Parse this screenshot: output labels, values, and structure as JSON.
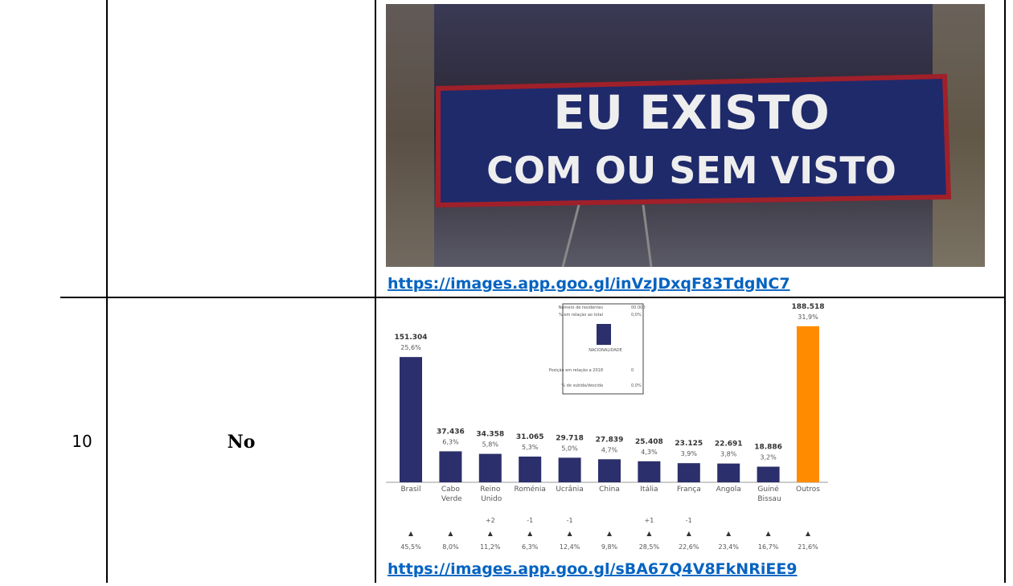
{
  "rows": [
    {
      "photo_banner": [
        "EU EXISTO",
        "COM OU SEM VISTO"
      ],
      "link": "https://images.app.goo.gl/inVzJDxqF83TdgNC7"
    },
    {
      "number": "10",
      "answer": "No",
      "chart": {
        "type": "bar",
        "legend_box": [
          "Número de residentes",
          "00.000",
          "% em relação ao total",
          "0,0%",
          "NACIONALIDADE",
          "Posição em relação a 2018",
          "0",
          "% de subida/descida",
          "0,0%"
        ],
        "categories": [
          "Brasil",
          "Cabo Verde",
          "Reino Unido",
          "Roménia",
          "Ucrânia",
          "China",
          "Itália",
          "França",
          "Angola",
          "Guiné Bissau",
          "Outros"
        ],
        "values": [
          151304,
          37436,
          34358,
          31065,
          29718,
          27839,
          25408,
          23125,
          22691,
          18886,
          188518
        ],
        "value_labels": [
          "151.304",
          "37.436",
          "34.358",
          "31.065",
          "29.718",
          "27.839",
          "25.408",
          "23.125",
          "22.691",
          "18.886",
          "188.518"
        ],
        "shares": [
          25.6,
          6.3,
          5.8,
          5.3,
          5.0,
          4.7,
          4.3,
          3.9,
          3.8,
          3.2,
          31.9
        ],
        "share_labels": [
          "25,6%",
          "6,3%",
          "5,8%",
          "5,3%",
          "5,0%",
          "4,7%",
          "4,3%",
          "3,9%",
          "3,8%",
          "3,2%",
          "31,9%"
        ],
        "position_changes": [
          null,
          null,
          2,
          -1,
          -1,
          null,
          1,
          -1,
          null,
          null,
          null
        ],
        "position_change_labels": [
          null,
          null,
          "+2",
          "-1",
          "-1",
          null,
          "+1",
          "-1",
          null,
          null,
          null
        ],
        "growth": [
          45.5,
          8.0,
          11.2,
          6.3,
          12.4,
          9.8,
          28.5,
          22.6,
          23.4,
          16.7,
          21.6
        ],
        "growth_labels": [
          "45,5%",
          "8,0%",
          "11,2%",
          "6,3%",
          "12,4%",
          "9,8%",
          "28,5%",
          "22,6%",
          "23,4%",
          "16,7%",
          "21,6%"
        ],
        "colors": [
          "#2b2f6b",
          "#2b2f6b",
          "#2b2f6b",
          "#2b2f6b",
          "#2b2f6b",
          "#2b2f6b",
          "#2b2f6b",
          "#2b2f6b",
          "#2b2f6b",
          "#2b2f6b",
          "#ff8c00"
        ],
        "ylim": [
          0,
          200000
        ]
      },
      "link": "https://images.app.goo.gl/sBA67Q4V8FkNRiEE9"
    }
  ]
}
